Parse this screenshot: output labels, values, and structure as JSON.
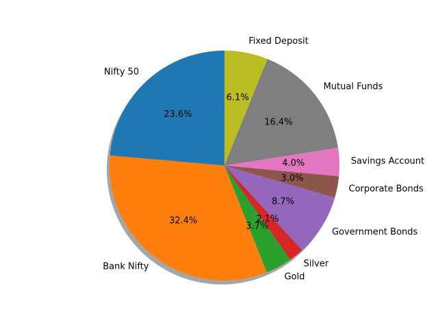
{
  "chart_data": {
    "type": "pie",
    "title": "",
    "start_angle_deg": 90,
    "direction": "counterclockwise",
    "shadow": true,
    "slices": [
      {
        "label": "Nifty 50",
        "value": 23.6,
        "pct_label": "23.6%",
        "color": "#1f77b4"
      },
      {
        "label": "Bank Nifty",
        "value": 32.4,
        "pct_label": "32.4%",
        "color": "#ff7f0e"
      },
      {
        "label": "Gold",
        "value": 3.7,
        "pct_label": "3.7%",
        "color": "#2ca02c"
      },
      {
        "label": "Silver",
        "value": 2.1,
        "pct_label": "2.1%",
        "color": "#d62728"
      },
      {
        "label": "Government Bonds",
        "value": 8.7,
        "pct_label": "8.7%",
        "color": "#9467bd"
      },
      {
        "label": "Corporate Bonds",
        "value": 3.0,
        "pct_label": "3.0%",
        "color": "#8c564b"
      },
      {
        "label": "Savings Account",
        "value": 4.0,
        "pct_label": "4.0%",
        "color": "#e377c2"
      },
      {
        "label": "Mutual Funds",
        "value": 16.4,
        "pct_label": "16.4%",
        "color": "#7f7f7f"
      },
      {
        "label": "Fixed Deposit",
        "value": 6.1,
        "pct_label": "6.1%",
        "color": "#bcbd22"
      }
    ]
  }
}
